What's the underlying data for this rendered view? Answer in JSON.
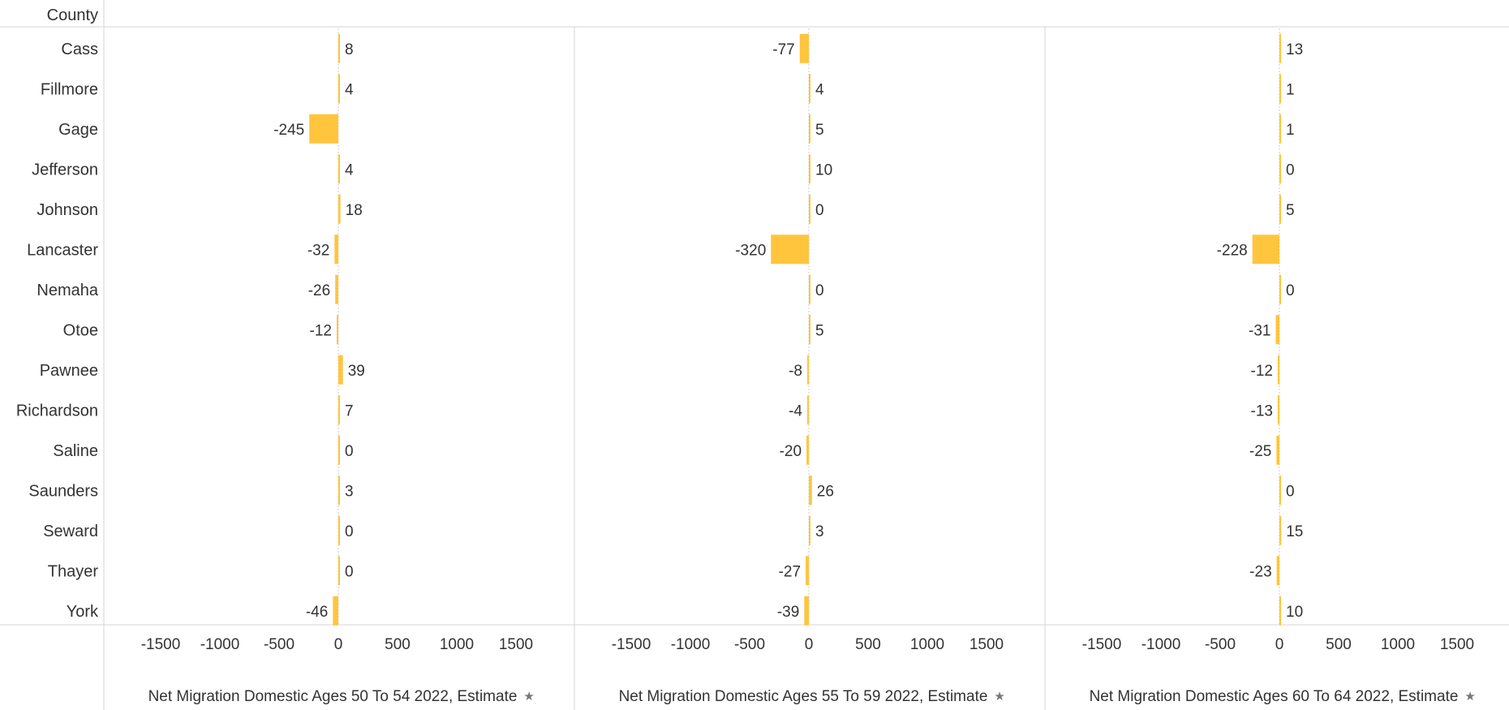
{
  "header": {
    "row_label": "County"
  },
  "colors": {
    "bar": "#FFC53D",
    "rule": "#d4d4d4",
    "zero": "#cccccc"
  },
  "pin_icon": "★",
  "chart_data": {
    "type": "bar",
    "orientation": "horizontal",
    "categories": [
      "Cass",
      "Fillmore",
      "Gage",
      "Jefferson",
      "Johnson",
      "Lancaster",
      "Nemaha",
      "Otoe",
      "Pawnee",
      "Richardson",
      "Saline",
      "Saunders",
      "Seward",
      "Thayer",
      "York"
    ],
    "xlim": [
      -1500,
      1500
    ],
    "xticks": [
      "-1500",
      "-1000",
      "-500",
      "0",
      "500",
      "1000",
      "1500"
    ],
    "xtick_values": [
      -1500,
      -1000,
      -500,
      0,
      500,
      1000,
      1500
    ],
    "panels": [
      {
        "xlabel": "Net Migration Domestic Ages 50 To 54 2022, Estimate",
        "values": [
          8,
          4,
          -245,
          4,
          18,
          -32,
          -26,
          -12,
          39,
          7,
          0,
          3,
          0,
          0,
          -46
        ]
      },
      {
        "xlabel": "Net Migration Domestic Ages 55 To 59 2022, Estimate",
        "values": [
          -77,
          4,
          5,
          10,
          0,
          -320,
          0,
          5,
          -8,
          -4,
          -20,
          26,
          3,
          -27,
          -39
        ]
      },
      {
        "xlabel": "Net Migration Domestic Ages 60 To 64 2022, Estimate",
        "values": [
          13,
          1,
          1,
          0,
          5,
          -228,
          0,
          -31,
          -12,
          -13,
          -25,
          0,
          15,
          -23,
          10
        ]
      }
    ]
  }
}
